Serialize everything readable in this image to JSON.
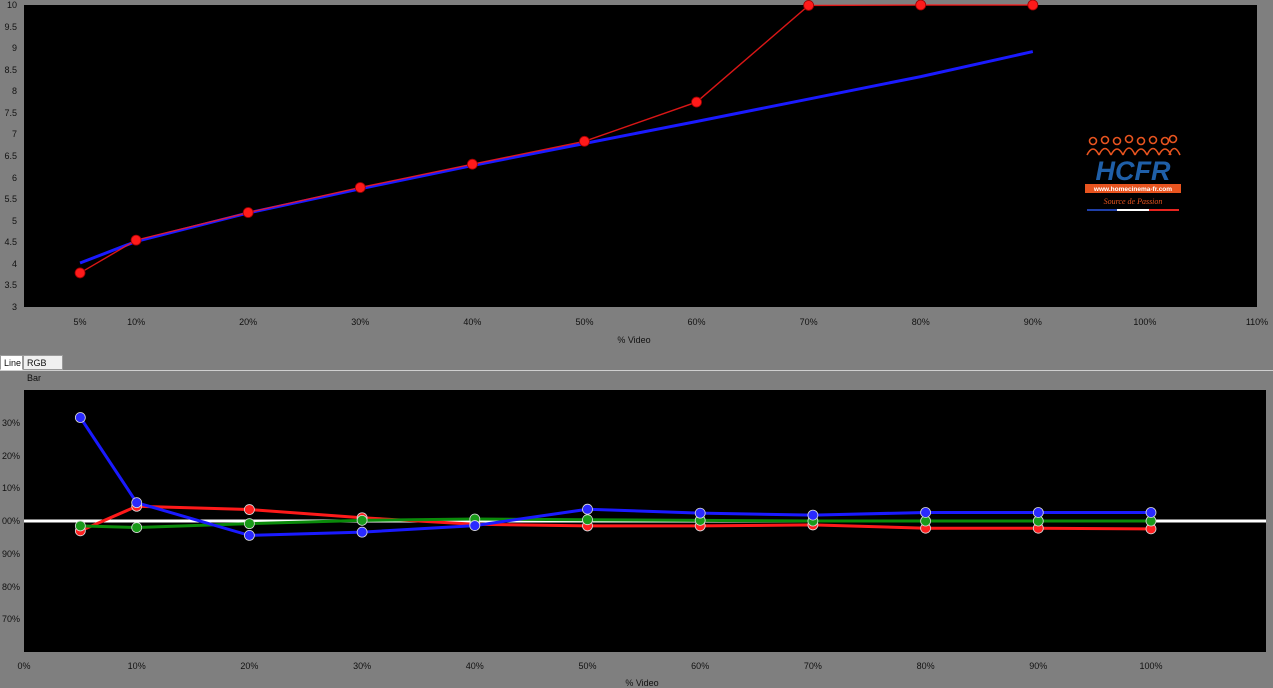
{
  "tabs": [
    {
      "label": "Line",
      "active": true
    },
    {
      "label": "RGB Bar",
      "active": false
    }
  ],
  "logo": {
    "text": "HCFR",
    "url_text": "www.homecinema-fr.com",
    "tagline": "Source de Passion",
    "colors": {
      "main": "#1f5fa8",
      "accent": "#e8541f"
    }
  },
  "chart_data": [
    {
      "type": "line",
      "title": "",
      "xlabel": "% Video",
      "ylabel": "",
      "xlim": [
        0,
        110
      ],
      "ylim": [
        3,
        10
      ],
      "x_ticks": [
        "5%",
        "10%",
        "20%",
        "30%",
        "40%",
        "50%",
        "60%",
        "70%",
        "80%",
        "90%",
        "100%",
        "110%"
      ],
      "x_tick_values": [
        5,
        10,
        20,
        30,
        40,
        50,
        60,
        70,
        80,
        90,
        100,
        110
      ],
      "y_ticks": [
        "3",
        "3.5",
        "4",
        "4.5",
        "5",
        "5.5",
        "6",
        "6.5",
        "7",
        "7.5",
        "8",
        "8.5",
        "9",
        "9.5",
        "10"
      ],
      "grid": false,
      "background": "#000000",
      "series": [
        {
          "color": "#1a1aff",
          "markers": false,
          "x": [
            5,
            10,
            20,
            30,
            40,
            50,
            60,
            70,
            80,
            90
          ],
          "y": [
            4.02,
            4.52,
            5.18,
            5.74,
            6.28,
            6.79,
            7.3,
            7.82,
            8.34,
            8.92
          ]
        },
        {
          "color": "#ff1a1a",
          "markers": true,
          "x": [
            5,
            10,
            20,
            30,
            40,
            50,
            60,
            70,
            80,
            90
          ],
          "y": [
            3.79,
            4.55,
            5.19,
            5.77,
            6.31,
            6.84,
            7.75,
            9.99,
            10.0,
            10.0
          ]
        }
      ]
    },
    {
      "type": "line",
      "title": "",
      "xlabel": "% Video",
      "ylabel": "",
      "xlim": [
        0,
        110
      ],
      "ylim": [
        60,
        140
      ],
      "x_ticks": [
        "0%",
        "10%",
        "20%",
        "30%",
        "40%",
        "50%",
        "60%",
        "70%",
        "80%",
        "90%",
        "100%"
      ],
      "x_tick_values": [
        0,
        10,
        20,
        30,
        40,
        50,
        60,
        70,
        80,
        90,
        100
      ],
      "y_ticks": [
        "30%",
        "20%",
        "10%",
        "00%",
        "90%",
        "80%",
        "70%"
      ],
      "y_tick_values": [
        130,
        120,
        110,
        100,
        90,
        80,
        70
      ],
      "reference_line": {
        "value": 100,
        "color": "#ffffff"
      },
      "grid": false,
      "background": "#000000",
      "series": [
        {
          "color": "#ff1a1a",
          "markers": true,
          "x": [
            5,
            10,
            20,
            30,
            40,
            50,
            60,
            70,
            80,
            90,
            100
          ],
          "y": [
            97.0,
            104.5,
            103.5,
            101.0,
            99.0,
            98.5,
            98.5,
            98.8,
            97.8,
            97.8,
            97.6
          ]
        },
        {
          "color": "#0a8a0a",
          "markers": true,
          "x": [
            5,
            10,
            20,
            30,
            40,
            50,
            60,
            70,
            80,
            90,
            100
          ],
          "y": [
            98.5,
            98.0,
            99.2,
            100.2,
            100.6,
            100.4,
            100.2,
            100.0,
            100.0,
            100.0,
            100.0
          ]
        },
        {
          "color": "#1a1aff",
          "markers": true,
          "x": [
            5,
            10,
            20,
            30,
            40,
            50,
            60,
            70,
            80,
            90,
            100
          ],
          "y": [
            131.6,
            105.6,
            95.6,
            96.6,
            98.6,
            103.6,
            102.4,
            101.8,
            102.6,
            102.6,
            102.6
          ]
        }
      ]
    }
  ]
}
